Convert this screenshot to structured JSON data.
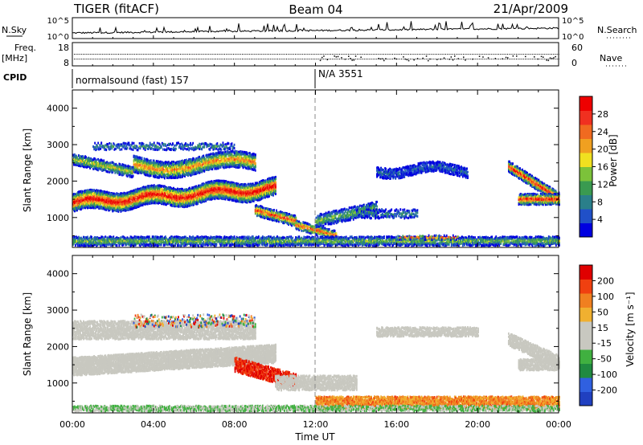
{
  "header": {
    "radar": "TIGER (fitACF)",
    "beam": "Beam 04",
    "date": "21/Apr/2009"
  },
  "strip_nsky": {
    "left_label": "N.Sky",
    "right_label": "N.Search",
    "left_ticks": [
      "10^5",
      "10^0"
    ],
    "right_ticks": [
      "10^5",
      "10^0"
    ]
  },
  "strip_freq": {
    "left_label_1": "Freq.",
    "left_label_2": "[MHz]",
    "left_ticks": [
      "18",
      "8"
    ],
    "right_label": "Nave",
    "right_ticks": [
      "60",
      "0"
    ]
  },
  "cpid": {
    "label": "CPID",
    "segments": [
      {
        "start_hour": 0,
        "text": "normalsound (fast) 157"
      },
      {
        "start_hour": 12,
        "text": "N/A 3551"
      }
    ]
  },
  "chart_data": [
    {
      "type": "heatmap",
      "panel": "power",
      "ylabel": "Slant Range [km]",
      "xlim": [
        0,
        24
      ],
      "ylim": [
        180,
        4500
      ],
      "yticks": [
        "1000",
        "2000",
        "3000",
        "4000"
      ],
      "colorbar": {
        "label": "Power [dB]",
        "ticks": [
          "28",
          "24",
          "20",
          "16",
          "12",
          "8",
          "4"
        ],
        "colors": [
          "#0000e0",
          "#2050c8",
          "#2a7f8a",
          "#3a9a50",
          "#7cc23a",
          "#f0e020",
          "#f0a020",
          "#f06a20",
          "#f03020",
          "#ee0000"
        ]
      }
    },
    {
      "type": "heatmap",
      "panel": "velocity",
      "ylabel": "Slant Range [km]",
      "xlim": [
        0,
        24
      ],
      "ylim": [
        180,
        4500
      ],
      "yticks": [
        "1000",
        "2000",
        "3000",
        "4000"
      ],
      "xticks": [
        "00:00",
        "04:00",
        "08:00",
        "12:00",
        "16:00",
        "20:00",
        "00:00"
      ],
      "xlabel": "Time UT",
      "colorbar": {
        "label": "Velocity [m s⁻¹]",
        "ticks": [
          "200",
          "100",
          "50",
          "15",
          "-15",
          "-50",
          "-100",
          "-200"
        ],
        "colors": [
          "#2040c0",
          "#3060e0",
          "#208a40",
          "#40b040",
          "#c8c8c0",
          "#c8c8c0",
          "#f0b030",
          "#f08020",
          "#f04010",
          "#e00000"
        ]
      }
    }
  ]
}
